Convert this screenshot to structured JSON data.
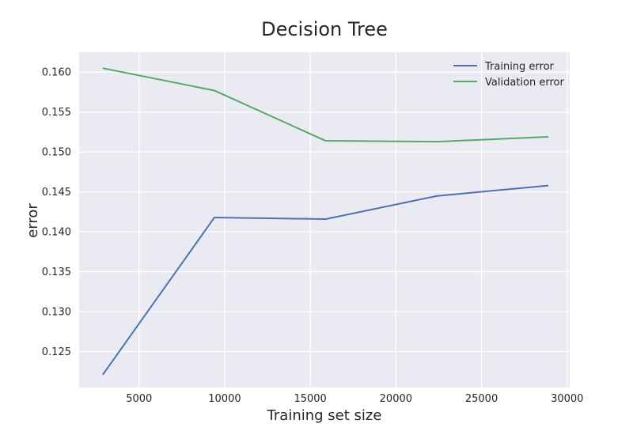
{
  "chart_data": {
    "type": "line",
    "title": "Decision Tree",
    "xlabel": "Training set size",
    "ylabel": "error",
    "xlim": [
      1500,
      30150
    ],
    "ylim": [
      0.1205,
      0.1625
    ],
    "x_ticks": [
      5000,
      10000,
      15000,
      20000,
      25000,
      30000
    ],
    "y_ticks": [
      0.125,
      0.13,
      0.135,
      0.14,
      0.145,
      0.15,
      0.155,
      0.16
    ],
    "y_tick_labels": [
      "0.125",
      "0.130",
      "0.135",
      "0.140",
      "0.145",
      "0.150",
      "0.155",
      "0.160"
    ],
    "grid": true,
    "legend_position": "top-right",
    "series": [
      {
        "name": "Training error",
        "color": "#4c72b0",
        "x": [
          2880,
          9400,
          15900,
          22400,
          28900
        ],
        "values": [
          0.1221,
          0.1418,
          0.1416,
          0.1445,
          0.1458
        ]
      },
      {
        "name": "Validation error",
        "color": "#55a868",
        "x": [
          2880,
          9400,
          15900,
          22400,
          28900
        ],
        "values": [
          0.1605,
          0.1577,
          0.1514,
          0.1513,
          0.1519
        ]
      }
    ]
  },
  "colors": {
    "plot_background": "#eaeaf2",
    "grid": "#ffffff"
  }
}
